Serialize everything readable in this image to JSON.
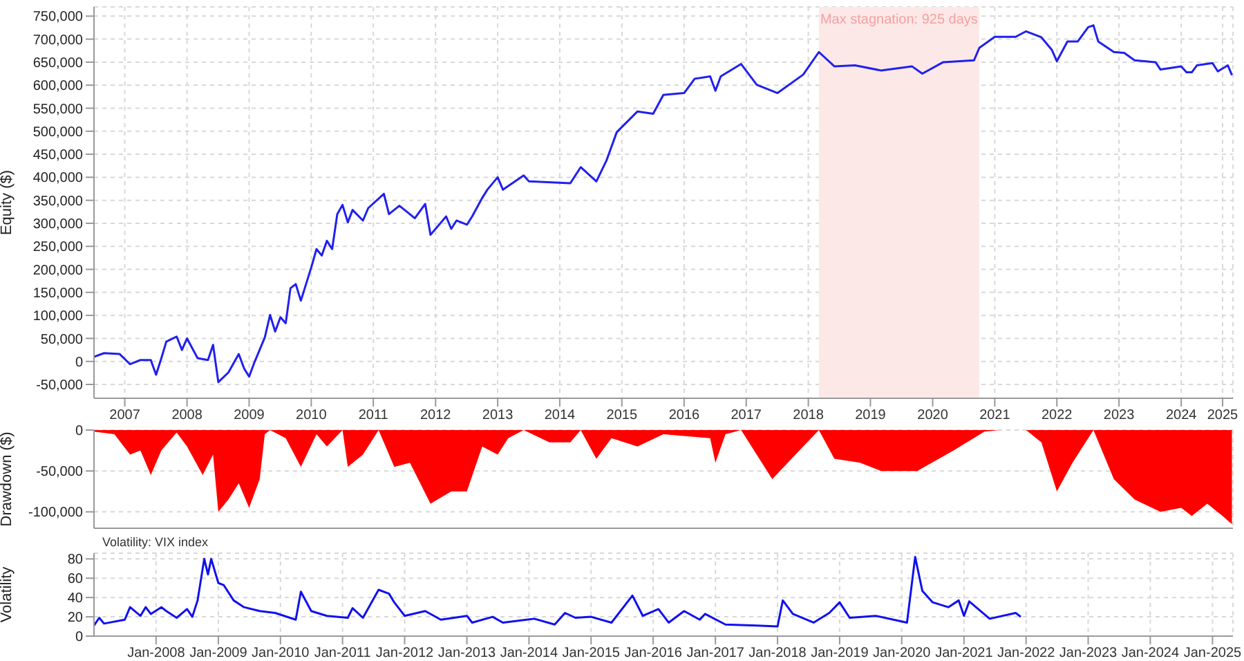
{
  "chart_data": [
    {
      "type": "line",
      "ylabel": "Equity ($)",
      "color": "#2020ee",
      "grid": true,
      "xlim": [
        "2007-01-01",
        "2025-05-01"
      ],
      "ylim": [
        -80000,
        770000
      ],
      "yticks": [
        {
          "value": -50000,
          "label": "-50,000"
        },
        0,
        {
          "value": 50000,
          "label": "50,000"
        },
        {
          "value": 100000,
          "label": "100,000"
        },
        {
          "value": 150000,
          "label": "150,000"
        },
        {
          "value": 200000,
          "label": "200,000"
        },
        {
          "value": 250000,
          "label": "250,000"
        },
        {
          "value": 300000,
          "label": "300,000"
        },
        {
          "value": 350000,
          "label": "350,000"
        },
        {
          "value": 400000,
          "label": "400,000"
        },
        {
          "value": 450000,
          "label": "450,000"
        },
        {
          "value": 500000,
          "label": "500,000"
        },
        {
          "value": 550000,
          "label": "550,000"
        },
        {
          "value": 600000,
          "label": "600,000"
        },
        {
          "value": 650000,
          "label": "650,000"
        },
        {
          "value": 700000,
          "label": "700,000"
        },
        {
          "value": 750000,
          "label": "750,000"
        }
      ],
      "xticks": [
        {
          "value": "2007-07",
          "label": "2007"
        },
        {
          "value": "2008-07",
          "label": "2008"
        },
        {
          "value": "2009-07",
          "label": "2009"
        },
        {
          "value": "2010-07",
          "label": "2010"
        },
        {
          "value": "2011-07",
          "label": "2011"
        },
        {
          "value": "2012-07",
          "label": "2012"
        },
        {
          "value": "2013-07",
          "label": "2013"
        },
        {
          "value": "2014-07",
          "label": "2014"
        },
        {
          "value": "2015-07",
          "label": "2015"
        },
        {
          "value": "2016-07",
          "label": "2016"
        },
        {
          "value": "2017-07",
          "label": "2017"
        },
        {
          "value": "2018-07",
          "label": "2018"
        },
        {
          "value": "2019-07",
          "label": "2019"
        },
        {
          "value": "2020-07",
          "label": "2020"
        },
        {
          "value": "2021-07",
          "label": "2021"
        },
        {
          "value": "2022-07",
          "label": "2022"
        },
        {
          "value": "2023-07",
          "label": "2023"
        },
        {
          "value": "2024-07",
          "label": "2024"
        },
        {
          "value": "2025-03",
          "label": "2025"
        }
      ],
      "bands": [
        {
          "axis": "x",
          "from": "2018-09",
          "to": "2021-04",
          "label": "Max stagnation: 925 days",
          "color": "#fde8e8"
        }
      ],
      "x": [
        "2007-01",
        "2007-03",
        "2007-06",
        "2007-08",
        "2007-10",
        "2007-12",
        "2008-01",
        "2008-02",
        "2008-03",
        "2008-05",
        "2008-06",
        "2008-07",
        "2008-09",
        "2008-11",
        "2008-12",
        "2009-01",
        "2009-03",
        "2009-05",
        "2009-06",
        "2009-07",
        "2009-08",
        "2009-10",
        "2009-11",
        "2009-12",
        "2010-01",
        "2010-02",
        "2010-03",
        "2010-04",
        "2010-05",
        "2010-07",
        "2010-08",
        "2010-09",
        "2010-10",
        "2010-11",
        "2010-12",
        "2011-01",
        "2011-02",
        "2011-03",
        "2011-05",
        "2011-06",
        "2011-09",
        "2011-10",
        "2011-12",
        "2012-01",
        "2012-03",
        "2012-05",
        "2012-06",
        "2012-09",
        "2012-10",
        "2012-11",
        "2013-01",
        "2013-02",
        "2013-04",
        "2013-05",
        "2013-07",
        "2013-08",
        "2013-12",
        "2014-01",
        "2014-09",
        "2014-11",
        "2015-02",
        "2015-04",
        "2015-06",
        "2015-10",
        "2016-01",
        "2016-03",
        "2016-07",
        "2016-09",
        "2016-12",
        "2017-01",
        "2017-02",
        "2017-06",
        "2017-09",
        "2018-01",
        "2018-06",
        "2018-09",
        "2018-12",
        "2019-04",
        "2019-09",
        "2020-03",
        "2020-05",
        "2020-09",
        "2021-03",
        "2021-04",
        "2021-07",
        "2021-11",
        "2022-01",
        "2022-04",
        "2022-06",
        "2022-07",
        "2022-09",
        "2022-11",
        "2023-01",
        "2023-02",
        "2023-03",
        "2023-06",
        "2023-08",
        "2023-10",
        "2024-02",
        "2024-03",
        "2024-07",
        "2024-08",
        "2024-09",
        "2024-10",
        "2025-01",
        "2025-02",
        "2025-04-01",
        "2025-04-25"
      ],
      "values": [
        10000,
        18000,
        16000,
        -6000,
        3000,
        3000,
        -29000,
        7000,
        43000,
        54000,
        25000,
        50000,
        7000,
        3000,
        36000,
        -45000,
        -24000,
        16000,
        -15000,
        -33000,
        -2000,
        52000,
        101000,
        65000,
        96000,
        83000,
        159000,
        168000,
        132000,
        204000,
        244000,
        230000,
        262000,
        244000,
        320000,
        340000,
        302000,
        329000,
        306000,
        333000,
        364000,
        320000,
        338000,
        329000,
        311000,
        342000,
        275000,
        315000,
        288000,
        306000,
        297000,
        315000,
        355000,
        373000,
        400000,
        373000,
        404000,
        391000,
        387000,
        422000,
        391000,
        436000,
        498000,
        543000,
        538000,
        579000,
        583000,
        614000,
        619000,
        588000,
        619000,
        646000,
        601000,
        583000,
        623000,
        672000,
        641000,
        643000,
        632000,
        641000,
        625000,
        650000,
        654000,
        681000,
        705000,
        705000,
        717000,
        704000,
        677000,
        652000,
        695000,
        695000,
        726000,
        730000,
        695000,
        672000,
        670000,
        654000,
        650000,
        634000,
        641000,
        628000,
        628000,
        643000,
        648000,
        630000,
        643000,
        622000
      ]
    },
    {
      "type": "area",
      "ylabel": "Drawdown ($)",
      "color": "#ff0000",
      "grid": true,
      "tick_labels": "y",
      "xlim": [
        "2007-01-01",
        "2025-05-01"
      ],
      "ylim": [
        -120000,
        0
      ],
      "yticks": [
        {
          "value": -100000,
          "label": "-100,000"
        },
        {
          "value": -50000,
          "label": "-50,000"
        },
        0
      ],
      "xticks": [
        {
          "value": "2008-01",
          "label": null
        },
        {
          "value": "2009-01",
          "label": null
        },
        {
          "value": "2010-01",
          "label": null
        },
        {
          "value": "2011-01",
          "label": null
        },
        {
          "value": "2012-01",
          "label": null
        },
        {
          "value": "2013-01",
          "label": null
        },
        {
          "value": "2014-01",
          "label": null
        },
        {
          "value": "2015-01",
          "label": null
        },
        {
          "value": "2016-01",
          "label": null
        },
        {
          "value": "2017-01",
          "label": null
        },
        {
          "value": "2018-01",
          "label": null
        },
        {
          "value": "2019-01",
          "label": null
        },
        {
          "value": "2020-01",
          "label": null
        },
        {
          "value": "2021-01",
          "label": null
        },
        {
          "value": "2022-01",
          "label": null
        },
        {
          "value": "2023-01",
          "label": null
        },
        {
          "value": "2024-01",
          "label": null
        },
        {
          "value": "2025-01",
          "label": null
        }
      ],
      "x": [
        "2007-01",
        "2007-05",
        "2007-08",
        "2007-10",
        "2007-12",
        "2008-02",
        "2008-05",
        "2008-07",
        "2008-10",
        "2008-12",
        "2009-01",
        "2009-03",
        "2009-05",
        "2009-07",
        "2009-09",
        "2009-10",
        "2009-11",
        "2010-02",
        "2010-05",
        "2010-08",
        "2010-10",
        "2011-01",
        "2011-02",
        "2011-05",
        "2011-08",
        "2011-11",
        "2012-02",
        "2012-06",
        "2012-10",
        "2013-01",
        "2013-04",
        "2013-07",
        "2013-09",
        "2013-12",
        "2014-05",
        "2014-09",
        "2014-11",
        "2015-02",
        "2015-05",
        "2015-10",
        "2016-03",
        "2016-12",
        "2017-01",
        "2017-03",
        "2017-06",
        "2017-12",
        "2018-06",
        "2018-09",
        "2018-12",
        "2019-05",
        "2019-09",
        "2020-04",
        "2020-11",
        "2021-05",
        "2021-08",
        "2022-01",
        "2022-04",
        "2022-07",
        "2022-10",
        "2023-02",
        "2023-06",
        "2023-10",
        "2024-03",
        "2024-07",
        "2024-09",
        "2024-12",
        "2025-03",
        "2025-04-25"
      ],
      "values": [
        -2000,
        -5000,
        -30000,
        -25000,
        -55000,
        -25000,
        -3000,
        -20000,
        -55000,
        -30000,
        -100000,
        -85000,
        -65000,
        -95000,
        -60000,
        -5000,
        0,
        -10000,
        -45000,
        -5000,
        -20000,
        0,
        -45000,
        -30000,
        0,
        -45000,
        -40000,
        -90000,
        -75000,
        -75000,
        -20000,
        -30000,
        -10000,
        0,
        -15000,
        -15000,
        0,
        -35000,
        -10000,
        -20000,
        -5000,
        -10000,
        -40000,
        -5000,
        0,
        -60000,
        -20000,
        0,
        -35000,
        -40000,
        -50000,
        -50000,
        -25000,
        -2000,
        0,
        0,
        -15000,
        -75000,
        -40000,
        0,
        -60000,
        -85000,
        -100000,
        -95000,
        -105000,
        -90000,
        -105000,
        -115000
      ]
    },
    {
      "type": "line",
      "ylabel": "Volatility",
      "color": "#1010f0",
      "grid": true,
      "annotations": [
        "Volatility: VIX index"
      ],
      "xlim": [
        "2007-01-01",
        "2025-05-01"
      ],
      "ylim": [
        0,
        86
      ],
      "yticks": [
        0,
        20,
        40,
        60,
        80
      ],
      "xticks": [
        {
          "value": "2008-01",
          "label": "Jan-2008"
        },
        {
          "value": "2009-01",
          "label": "Jan-2009"
        },
        {
          "value": "2010-01",
          "label": "Jan-2010"
        },
        {
          "value": "2011-01",
          "label": "Jan-2011"
        },
        {
          "value": "2012-01",
          "label": "Jan-2012"
        },
        {
          "value": "2013-01",
          "label": "Jan-2013"
        },
        {
          "value": "2014-01",
          "label": "Jan-2014"
        },
        {
          "value": "2015-01",
          "label": "Jan-2015"
        },
        {
          "value": "2016-01",
          "label": "Jan-2016"
        },
        {
          "value": "2017-01",
          "label": "Jan-2017"
        },
        {
          "value": "2018-01",
          "label": "Jan-2018"
        },
        {
          "value": "2019-01",
          "label": "Jan-2019"
        },
        {
          "value": "2020-01",
          "label": "Jan-2020"
        },
        {
          "value": "2021-01",
          "label": "Jan-2021"
        },
        {
          "value": "2022-01",
          "label": "Jan-2022"
        },
        {
          "value": "2023-01",
          "label": "Jan-2023"
        },
        {
          "value": "2024-01",
          "label": "Jan-2024"
        },
        {
          "value": "2025-01",
          "label": "Jan-2025"
        }
      ],
      "x": [
        "2007-01",
        "2007-02",
        "2007-03",
        "2007-07",
        "2007-08",
        "2007-10",
        "2007-11",
        "2007-12",
        "2008-02",
        "2008-03",
        "2008-05",
        "2008-07",
        "2008-08",
        "2008-09",
        "2008-10-10",
        "2008-11",
        "2008-11-20",
        "2009-01",
        "2009-02",
        "2009-04",
        "2009-06",
        "2009-09",
        "2009-12",
        "2010-04",
        "2010-05",
        "2010-07",
        "2010-10",
        "2011-02",
        "2011-03",
        "2011-05",
        "2011-08",
        "2011-10",
        "2011-11",
        "2012-01",
        "2012-05",
        "2012-08",
        "2013-01",
        "2013-02",
        "2013-06",
        "2013-08",
        "2014-02",
        "2014-06",
        "2014-08",
        "2014-10",
        "2015-01",
        "2015-05",
        "2015-09",
        "2015-11",
        "2016-02",
        "2016-04",
        "2016-07",
        "2016-10",
        "2016-11",
        "2017-03",
        "2017-09",
        "2018-01",
        "2018-02",
        "2018-04",
        "2018-08",
        "2018-11",
        "2019-01",
        "2019-03",
        "2019-08",
        "2020-02",
        "2020-03-20",
        "2020-05",
        "2020-07",
        "2020-10",
        "2020-12",
        "2021-01",
        "2021-02",
        "2021-06",
        "2021-11",
        "2021-12"
      ],
      "values": [
        11,
        19,
        13,
        17,
        30,
        21,
        30,
        23,
        30,
        26,
        19,
        28,
        20,
        37,
        80,
        64,
        80,
        55,
        53,
        37,
        30,
        26,
        24,
        17,
        46,
        26,
        21,
        19,
        29,
        19,
        48,
        44,
        35,
        21,
        26,
        17,
        21,
        14,
        20,
        14,
        18,
        12,
        24,
        19,
        20,
        14,
        42,
        21,
        28,
        14,
        26,
        17,
        23,
        12,
        11,
        10,
        37,
        23,
        14,
        24,
        35,
        19,
        21,
        14,
        82,
        47,
        35,
        30,
        37,
        21,
        36,
        18,
        24,
        20
      ]
    }
  ]
}
